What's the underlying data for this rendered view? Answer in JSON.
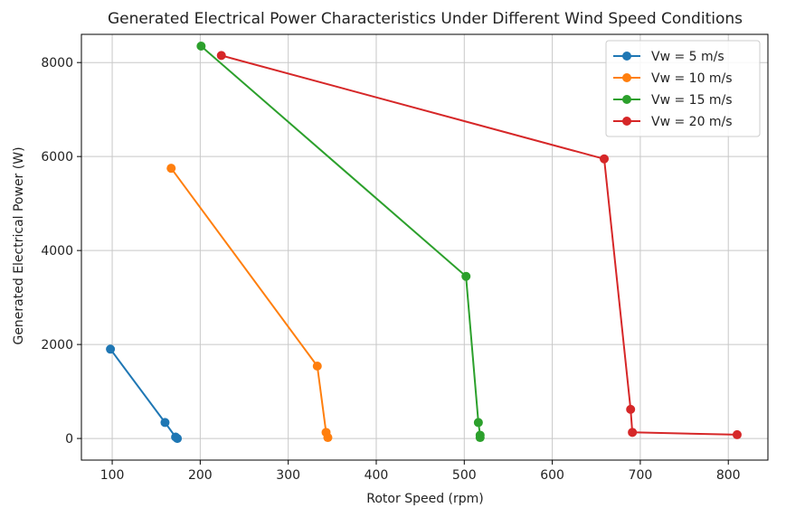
{
  "chart_data": {
    "type": "line",
    "title": "Generated Electrical Power Characteristics Under Different Wind Speed Conditions",
    "xlabel": "Rotor Speed (rpm)",
    "ylabel": "Generated Electrical Power (W)",
    "xlim": [
      65,
      845
    ],
    "ylim": [
      -460,
      8600
    ],
    "xticks": [
      100,
      200,
      300,
      400,
      500,
      600,
      700,
      800
    ],
    "yticks": [
      0,
      2000,
      4000,
      6000,
      8000
    ],
    "xtick_labels": [
      "100",
      "200",
      "300",
      "400",
      "500",
      "600",
      "700",
      "800"
    ],
    "ytick_labels": [
      "0",
      "2000",
      "4000",
      "6000",
      "8000"
    ],
    "grid": true,
    "legend_position": "top-right",
    "series": [
      {
        "name": "Vw = 5 m/s",
        "color": "#1f77b4",
        "points": [
          [
            98,
            1900
          ],
          [
            160,
            340
          ],
          [
            172,
            30
          ],
          [
            174,
            0
          ]
        ]
      },
      {
        "name": "Vw = 10 m/s",
        "color": "#ff7f0e",
        "points": [
          [
            167,
            5750
          ],
          [
            333,
            1540
          ],
          [
            343,
            130
          ],
          [
            345,
            20
          ]
        ]
      },
      {
        "name": "Vw = 15 m/s",
        "color": "#2ca02c",
        "points": [
          [
            201,
            8350
          ],
          [
            502,
            3450
          ],
          [
            516,
            340
          ],
          [
            518,
            70
          ],
          [
            518,
            20
          ]
        ]
      },
      {
        "name": "Vw = 20 m/s",
        "color": "#d62728",
        "points": [
          [
            224,
            8150
          ],
          [
            659,
            5950
          ],
          [
            689,
            620
          ],
          [
            691,
            130
          ],
          [
            810,
            80
          ]
        ]
      }
    ]
  }
}
